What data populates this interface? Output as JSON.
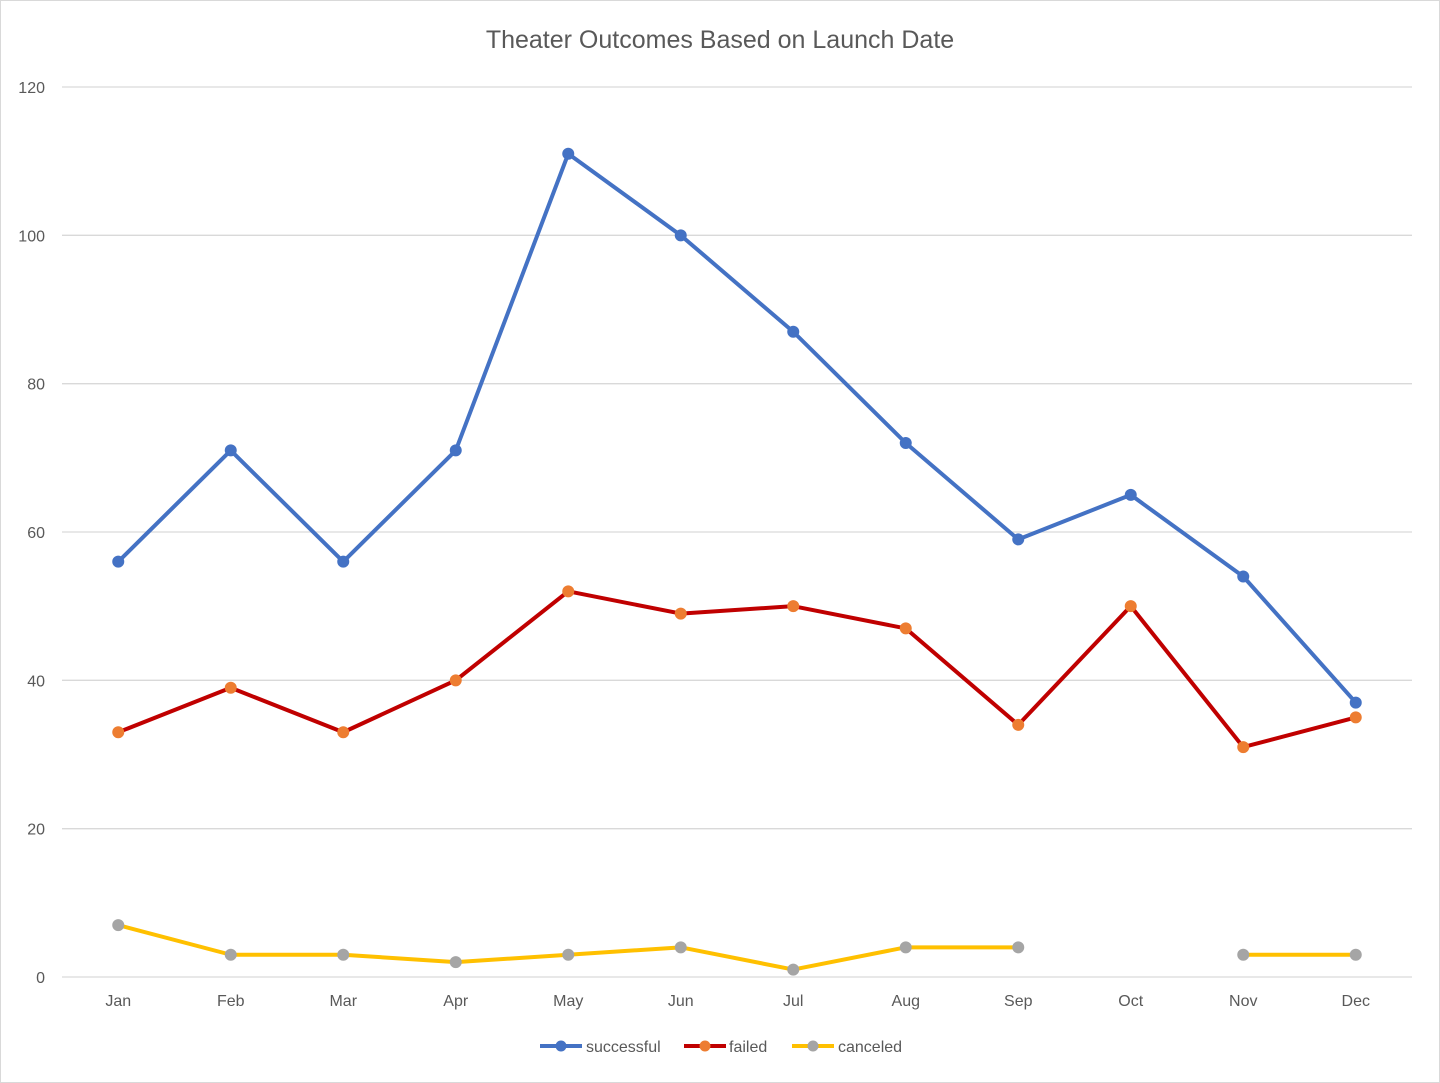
{
  "chart_data": {
    "type": "line",
    "title": "Theater Outcomes Based on Launch Date",
    "xlabel": "",
    "ylabel": "",
    "categories": [
      "Jan",
      "Feb",
      "Mar",
      "Apr",
      "May",
      "Jun",
      "Jul",
      "Aug",
      "Sep",
      "Oct",
      "Nov",
      "Dec"
    ],
    "ylim": [
      0,
      120
    ],
    "yticks": [
      0,
      20,
      40,
      60,
      80,
      100,
      120
    ],
    "grid": true,
    "legend_position": "bottom",
    "series": [
      {
        "name": "successful",
        "line_color": "#4472C4",
        "marker_color": "#4472C4",
        "values": [
          56,
          71,
          56,
          71,
          111,
          100,
          87,
          72,
          59,
          65,
          54,
          37
        ]
      },
      {
        "name": "failed",
        "line_color": "#C00000",
        "marker_color": "#ED7D31",
        "values": [
          33,
          39,
          33,
          40,
          52,
          49,
          50,
          47,
          34,
          50,
          31,
          35
        ]
      },
      {
        "name": "canceled",
        "line_color": "#FFC000",
        "marker_color": "#A5A5A5",
        "values": [
          7,
          3,
          3,
          2,
          3,
          4,
          1,
          4,
          4,
          null,
          3,
          3
        ]
      }
    ]
  }
}
